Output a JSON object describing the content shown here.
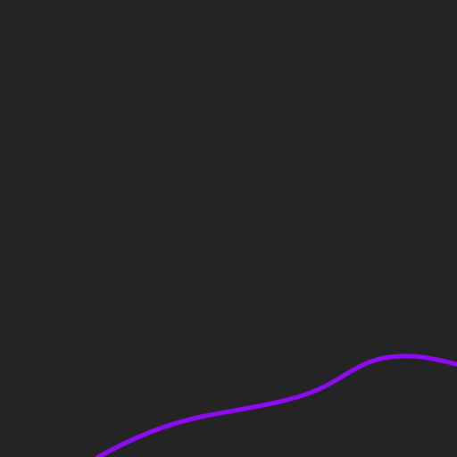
{
  "colors": {
    "background": "#242424",
    "curve_stroke": "#8f0bf5"
  },
  "curve": {
    "visible": true,
    "shape": "smooth-wave"
  }
}
